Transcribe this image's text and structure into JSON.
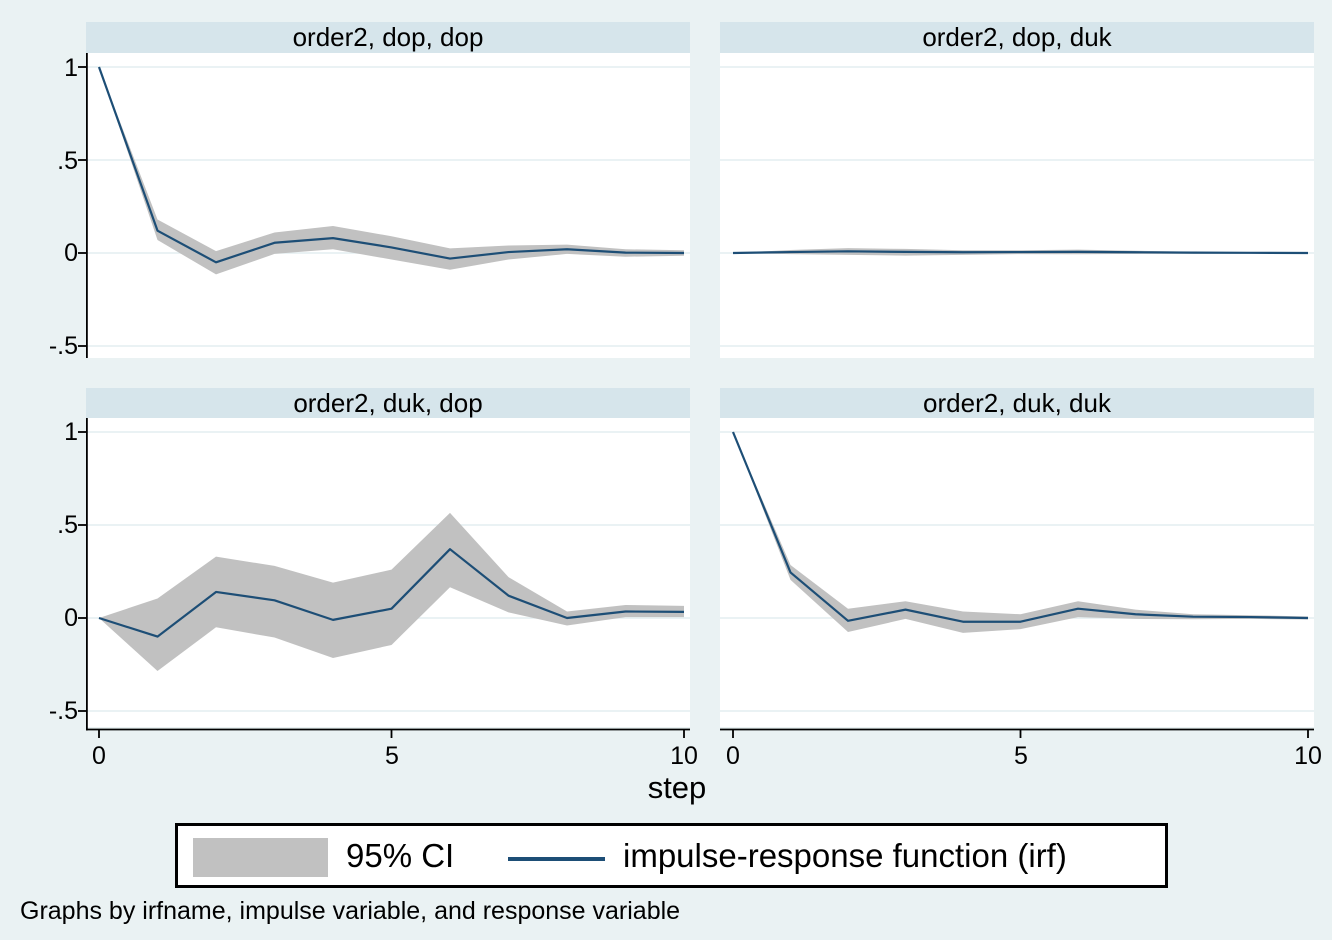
{
  "figure": {
    "xlabel": "step",
    "note": "Graphs by irfname, impulse variable, and response variable"
  },
  "legend": {
    "items": [
      {
        "swatch": "ci-area",
        "label": "95% CI"
      },
      {
        "swatch": "irf-line",
        "label": "impulse-response function (irf)"
      }
    ]
  },
  "axes": {
    "y_tick_labels": [
      "1",
      ".5",
      "0",
      "-.5"
    ],
    "x_tick_labels": [
      "0",
      "5",
      "10"
    ]
  },
  "colors": {
    "background": "#eaf2f3",
    "plot_bg": "#ffffff",
    "title_band": "#d6e5eb",
    "gridline": "#e4eef0",
    "ci_band": "#c1c1c1",
    "irf_line": "#1d4e76",
    "axis": "#000000"
  },
  "chart_data": {
    "type": "line",
    "layout": "2x2 panels, shared axes",
    "x": [
      0,
      1,
      2,
      3,
      4,
      5,
      6,
      7,
      8,
      9,
      10
    ],
    "x_ticks": [
      0,
      5,
      10
    ],
    "xlabel": "step",
    "y_gridlines": [
      1,
      0.5,
      0,
      -0.5
    ],
    "ylim": [
      -0.56,
      1.08
    ],
    "xlim": [
      0,
      10
    ],
    "legend_position": "bottom",
    "series_names": [
      "95% CI",
      "impulse-response function (irf)"
    ],
    "panels": [
      {
        "title": "order2, dop, dop",
        "irf": [
          1,
          0.12,
          -0.05,
          0.055,
          0.08,
          0.03,
          -0.03,
          0.005,
          0.02,
          0.002,
          0
        ],
        "ci_upper": [
          1,
          0.18,
          0.01,
          0.11,
          0.145,
          0.09,
          0.025,
          0.04,
          0.045,
          0.02,
          0.015
        ],
        "ci_lower": [
          1,
          0.07,
          -0.115,
          -0.005,
          0.02,
          -0.035,
          -0.09,
          -0.035,
          -0.005,
          -0.02,
          -0.015
        ]
      },
      {
        "title": "order2, dop, duk",
        "irf": [
          0,
          0.005,
          0.009,
          0.006,
          0.004,
          0.005,
          0.006,
          0.004,
          0.002,
          0.001,
          0
        ],
        "ci_upper": [
          0,
          0.016,
          0.026,
          0.022,
          0.015,
          0.015,
          0.018,
          0.012,
          0.007,
          0.004,
          0.002
        ],
        "ci_lower": [
          0,
          -0.006,
          -0.01,
          -0.014,
          -0.01,
          -0.006,
          -0.007,
          -0.005,
          -0.004,
          -0.003,
          -0.002
        ]
      },
      {
        "title": "order2, duk, dop",
        "irf": [
          0,
          -0.1,
          0.14,
          0.095,
          -0.01,
          0.05,
          0.37,
          0.12,
          0,
          0.035,
          0.033
        ],
        "ci_upper": [
          0,
          0.105,
          0.33,
          0.28,
          0.19,
          0.26,
          0.565,
          0.22,
          0.035,
          0.07,
          0.065
        ],
        "ci_lower": [
          0,
          -0.285,
          -0.05,
          -0.105,
          -0.215,
          -0.145,
          0.165,
          0.03,
          -0.04,
          0.005,
          0.005
        ]
      },
      {
        "title": "order2, duk, duk",
        "irf": [
          1,
          0.245,
          -0.015,
          0.045,
          -0.02,
          -0.02,
          0.05,
          0.02,
          0.007,
          0.005,
          0
        ],
        "ci_upper": [
          1,
          0.285,
          0.05,
          0.09,
          0.035,
          0.02,
          0.09,
          0.045,
          0.02,
          0.015,
          0.008
        ],
        "ci_lower": [
          1,
          0.205,
          -0.075,
          -0.005,
          -0.08,
          -0.06,
          0.005,
          -0.005,
          -0.007,
          -0.005,
          -0.008
        ]
      }
    ]
  }
}
